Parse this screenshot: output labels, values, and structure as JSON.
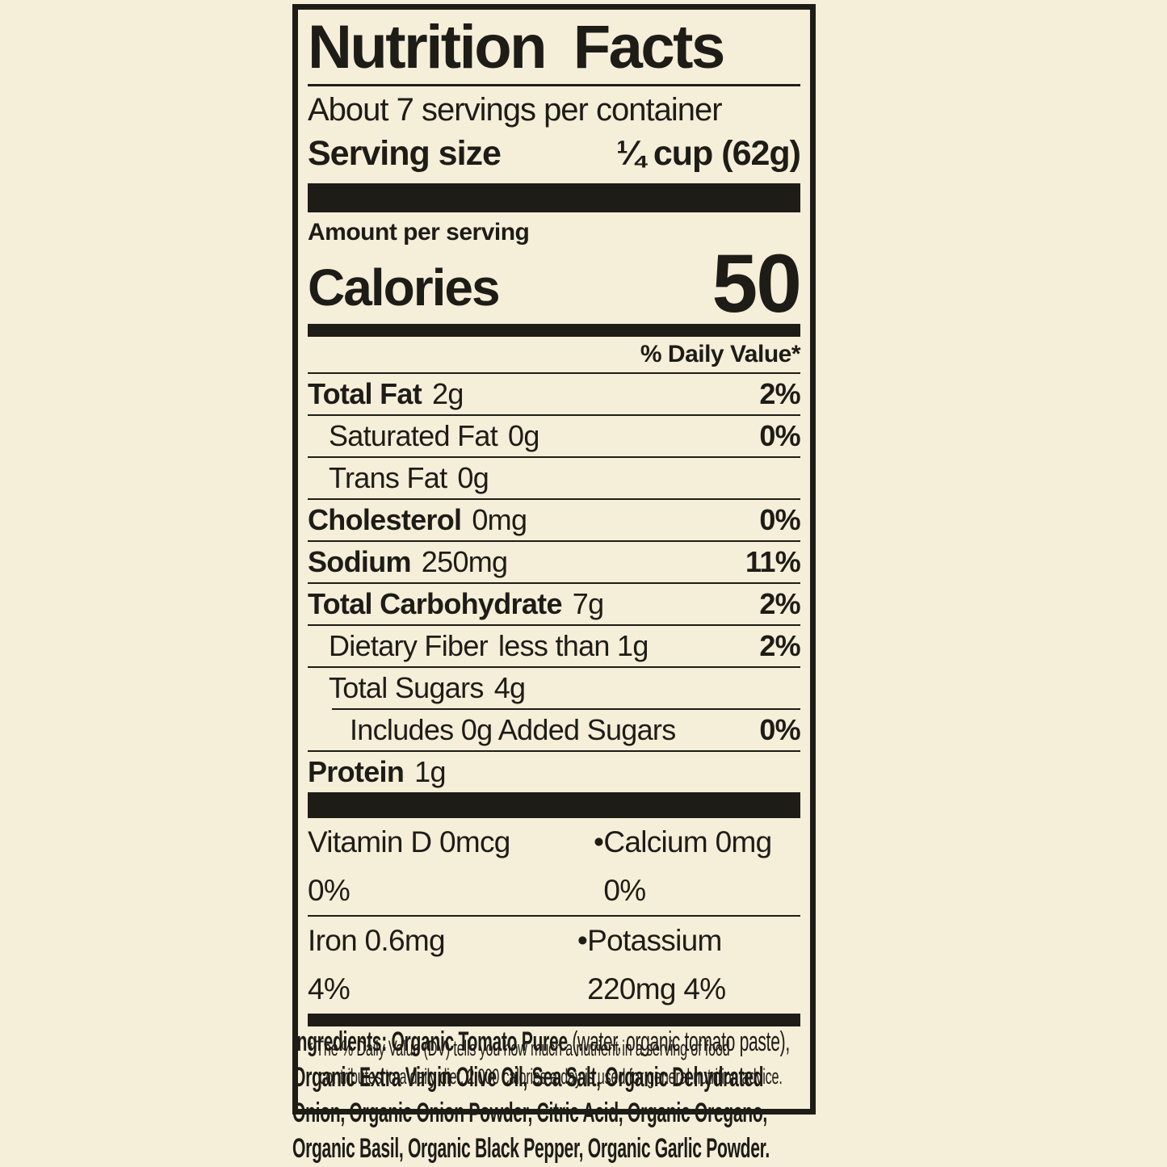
{
  "colors": {
    "background": "#f5eed8",
    "ink": "#1e1c17"
  },
  "label": {
    "title": "Nutrition Facts",
    "servings_per_container": "About 7 servings per container",
    "serving_size": {
      "label": "Serving size",
      "value": "¼ cup (62g)"
    },
    "amount_per_serving": "Amount per serving",
    "calories": {
      "label": "Calories",
      "value": "50"
    },
    "daily_value_header": "% Daily Value*",
    "rows": [
      {
        "name": "Total Fat",
        "amount": "2g",
        "dv": "2%"
      },
      {
        "name": "Saturated Fat",
        "amount": "0g",
        "dv": "0%"
      },
      {
        "name": "Trans Fat",
        "amount": "0g",
        "dv": ""
      },
      {
        "name": "Cholesterol",
        "amount": "0mg",
        "dv": "0%"
      },
      {
        "name": "Sodium",
        "amount": "250mg",
        "dv": "11%"
      },
      {
        "name": "Total Carbohydrate",
        "amount": "7g",
        "dv": "2%"
      },
      {
        "name": "Dietary Fiber",
        "amount": "less than 1g",
        "dv": "2%"
      },
      {
        "name": "Total Sugars",
        "amount": "4g",
        "dv": ""
      },
      {
        "name": "Includes 0g Added Sugars",
        "amount": "",
        "dv": "0%"
      },
      {
        "name": "Protein",
        "amount": "1g",
        "dv": ""
      }
    ],
    "micronutrients": [
      {
        "left": "Vitamin D 0mcg 0%",
        "separator": "•",
        "right": "Calcium 0mg 0%"
      },
      {
        "left": "Iron 0.6mg 4%",
        "separator": "•",
        "right": "Potassium 220mg 4%"
      }
    ],
    "footnote": {
      "line1": "* The % Daily Value (DV) tells you how much a nutrient in a serving of food",
      "line2": "contributes to a daily diet. 2,000 calories a day is used for general nutrition advice."
    }
  },
  "ingredients": {
    "lines": [
      {
        "bold": "Ingredients: Organic Tomato Puree",
        "regular": " (water, organic tomato paste),"
      },
      {
        "bold": "Organic Extra Virgin Olive Oil, Sea Salt, Organic Dehydrated",
        "regular": ""
      },
      {
        "bold": "Onion, Organic Onion Powder, Citric Acid, Organic Oregano,",
        "regular": ""
      },
      {
        "bold": "Organic Basil, Organic Black Pepper, Organic Garlic Powder.",
        "regular": ""
      }
    ]
  }
}
